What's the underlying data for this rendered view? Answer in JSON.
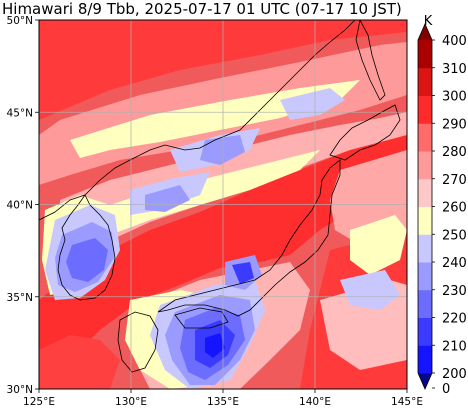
{
  "title": "Himawari 8/9 Tbb, 2025-07-17 01 UTC (07-17 10 JST)",
  "map": {
    "lon_range": [
      125,
      145
    ],
    "lat_range": [
      30,
      50
    ],
    "lon_ticks": [
      {
        "value": 125,
        "label": "125°E"
      },
      {
        "value": 130,
        "label": "130°E"
      },
      {
        "value": 135,
        "label": "135°E"
      },
      {
        "value": 140,
        "label": "140°E"
      },
      {
        "value": 145,
        "label": "145°E"
      }
    ],
    "lat_ticks": [
      {
        "value": 30,
        "label": "30°N"
      },
      {
        "value": 35,
        "label": "35°N"
      },
      {
        "value": 40,
        "label": "40°N"
      },
      {
        "value": 45,
        "label": "45°N"
      },
      {
        "value": 50,
        "label": "50°N"
      }
    ],
    "gridlines": true,
    "background_color": "#f05a5a"
  },
  "colorbar": {
    "unit": "K",
    "levels": [
      200,
      210,
      220,
      230,
      240,
      250,
      260,
      270,
      280,
      290,
      300,
      310,
      400
    ],
    "tick_labels": [
      "0",
      "200",
      "210",
      "220",
      "230",
      "240",
      "250",
      "260",
      "270",
      "280",
      "290",
      "300",
      "310",
      "400"
    ],
    "colors": [
      "#08088a",
      "#1414ff",
      "#3b3bff",
      "#6c6cff",
      "#9a9aff",
      "#c8c8ff",
      "#ffffc0",
      "#ffc8c8",
      "#ff9a9a",
      "#ff6a6a",
      "#ff2a2a",
      "#dd1414",
      "#aa0000",
      "#800000"
    ],
    "extend": "both"
  }
}
